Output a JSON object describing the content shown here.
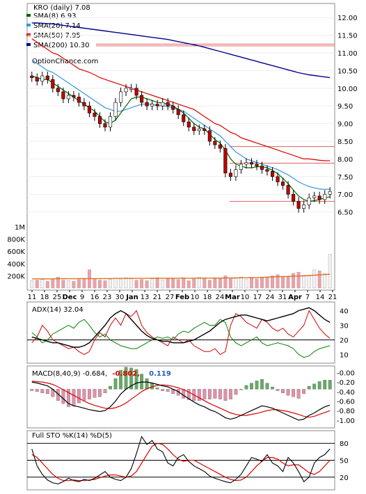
{
  "chart_data": [
    {
      "type": "candlestick",
      "panel": "price",
      "title": "KRO (daily) 7.08",
      "watermark": "OptionChance.com",
      "ylim": [
        6.0,
        12.3
      ],
      "yticks": [
        "12.00",
        "11.50",
        "11.00",
        "10.50",
        "10.00",
        "9.50",
        "9.00",
        "8.50",
        "8.00",
        "7.50",
        "7.00",
        "6.50"
      ],
      "legend": [
        {
          "label": "SMA(8) 6.93",
          "color": "#006400"
        },
        {
          "label": "SMA(20) 7.14",
          "color": "#3399dd"
        },
        {
          "label": "SMA(50) 7.95",
          "color": "#dd0000"
        },
        {
          "label": "SMA(200) 10.30",
          "color": "#00008b"
        }
      ],
      "hlines": [
        11.25,
        11.2,
        8.35,
        7.88,
        6.8
      ],
      "close": [
        10.3,
        10.2,
        10.35,
        10.25,
        10.0,
        9.9,
        9.7,
        9.8,
        9.75,
        9.6,
        9.5,
        9.3,
        9.2,
        9.0,
        8.9,
        9.2,
        9.6,
        9.9,
        10.0,
        10.0,
        9.8,
        9.6,
        9.5,
        9.55,
        9.5,
        9.6,
        9.5,
        9.4,
        9.25,
        9.05,
        8.9,
        8.8,
        8.85,
        8.8,
        8.5,
        8.4,
        8.3,
        7.6,
        7.5,
        7.7,
        7.85,
        7.9,
        7.85,
        7.8,
        7.7,
        7.65,
        7.5,
        7.35,
        7.25,
        7.0,
        6.8,
        6.6,
        6.7,
        6.9,
        6.95,
        6.85,
        7.0,
        7.08
      ],
      "sma8": [
        10.35,
        10.3,
        10.25,
        10.25,
        10.15,
        10.05,
        9.95,
        9.85,
        9.75,
        9.65,
        9.55,
        9.45,
        9.35,
        9.2,
        9.05,
        9.0,
        9.1,
        9.3,
        9.5,
        9.7,
        9.75,
        9.75,
        9.7,
        9.65,
        9.6,
        9.58,
        9.55,
        9.5,
        9.4,
        9.3,
        9.15,
        9.0,
        8.9,
        8.85,
        8.7,
        8.55,
        8.45,
        8.25,
        8.0,
        7.85,
        7.8,
        7.75,
        7.75,
        7.78,
        7.78,
        7.75,
        7.68,
        7.58,
        7.45,
        7.3,
        7.12,
        6.95,
        6.85,
        6.8,
        6.82,
        6.85,
        6.9,
        6.93
      ],
      "sma20": [
        10.8,
        10.7,
        10.6,
        10.5,
        10.45,
        10.35,
        10.25,
        10.15,
        10.05,
        9.95,
        9.85,
        9.75,
        9.65,
        9.55,
        9.45,
        9.4,
        9.35,
        9.35,
        9.4,
        9.45,
        9.5,
        9.55,
        9.55,
        9.55,
        9.5,
        9.5,
        9.48,
        9.45,
        9.4,
        9.35,
        9.25,
        9.15,
        9.05,
        8.95,
        8.85,
        8.75,
        8.65,
        8.5,
        8.35,
        8.2,
        8.1,
        8.0,
        7.95,
        7.9,
        7.85,
        7.8,
        7.75,
        7.7,
        7.62,
        7.55,
        7.45,
        7.35,
        7.28,
        7.22,
        7.18,
        7.15,
        7.14,
        7.14
      ],
      "sma50": [
        11.4,
        11.3,
        11.2,
        11.1,
        11.0,
        10.95,
        10.85,
        10.75,
        10.65,
        10.55,
        10.5,
        10.45,
        10.38,
        10.3,
        10.25,
        10.2,
        10.15,
        10.1,
        10.05,
        10.0,
        9.95,
        9.9,
        9.85,
        9.8,
        9.75,
        9.7,
        9.65,
        9.6,
        9.55,
        9.5,
        9.45,
        9.4,
        9.3,
        9.2,
        9.1,
        9.0,
        8.95,
        8.85,
        8.75,
        8.7,
        8.6,
        8.55,
        8.5,
        8.45,
        8.4,
        8.35,
        8.3,
        8.25,
        8.2,
        8.15,
        8.1,
        8.05,
        8.0,
        8.0,
        7.98,
        7.96,
        7.95,
        7.95
      ],
      "sma200": [
        11.85,
        11.85,
        11.84,
        11.83,
        11.82,
        11.8,
        11.78,
        11.76,
        11.74,
        11.72,
        11.7,
        11.68,
        11.66,
        11.64,
        11.62,
        11.6,
        11.58,
        11.56,
        11.54,
        11.52,
        11.5,
        11.48,
        11.46,
        11.44,
        11.42,
        11.4,
        11.38,
        11.35,
        11.32,
        11.29,
        11.26,
        11.23,
        11.2,
        11.16,
        11.12,
        11.08,
        11.04,
        11.0,
        10.96,
        10.92,
        10.88,
        10.84,
        10.8,
        10.76,
        10.72,
        10.68,
        10.64,
        10.6,
        10.56,
        10.52,
        10.48,
        10.44,
        10.41,
        10.38,
        10.36,
        10.34,
        10.32,
        10.3
      ]
    },
    {
      "type": "bar",
      "panel": "volume",
      "yticks": [
        "1M",
        "800K",
        "600K",
        "400K",
        "200K"
      ],
      "ylim": [
        0,
        1000000
      ],
      "xticks": [
        "11",
        "18",
        "25",
        "Dec",
        "9",
        "16",
        "23",
        "30",
        "Jan",
        "13",
        "21",
        "27",
        "Feb",
        "10",
        "18",
        "24",
        "Mar",
        "10",
        "17",
        "24",
        "31",
        "Apr",
        "7",
        "14",
        "21"
      ],
      "values": [
        120000,
        130000,
        140000,
        110000,
        150000,
        180000,
        130000,
        120000,
        110000,
        140000,
        160000,
        300000,
        150000,
        130000,
        120000,
        140000,
        160000,
        140000,
        170000,
        150000,
        130000,
        140000,
        120000,
        150000,
        170000,
        130000,
        160000,
        150000,
        140000,
        170000,
        120000,
        160000,
        180000,
        150000,
        130000,
        170000,
        160000,
        200000,
        150000,
        170000,
        180000,
        140000,
        160000,
        150000,
        170000,
        180000,
        200000,
        220000,
        190000,
        180000,
        240000,
        260000,
        210000,
        200000,
        300000,
        280000,
        240000,
        550000
      ],
      "ma": [
        150000,
        150000,
        150000,
        150000,
        150000,
        152000,
        152000,
        152000,
        152000,
        155000,
        155000,
        155000,
        155000,
        155000,
        155000,
        155000,
        158000,
        158000,
        158000,
        158000,
        158000,
        158000,
        158000,
        160000,
        160000,
        160000,
        160000,
        160000,
        160000,
        160000,
        160000,
        160000,
        160000,
        162000,
        162000,
        162000,
        162000,
        165000,
        165000,
        165000,
        168000,
        168000,
        170000,
        172000,
        175000,
        178000,
        182000,
        185000,
        188000,
        190000,
        193000,
        196000,
        200000,
        205000,
        210000,
        215000,
        220000,
        225000
      ]
    },
    {
      "type": "line",
      "panel": "adx",
      "legend": "ADX(14) 32.04",
      "yticks": [
        "40",
        "30",
        "20",
        "10"
      ],
      "ylim": [
        5,
        45
      ],
      "hline": 20,
      "adx": [
        22,
        21,
        20,
        19,
        18,
        18,
        17,
        16,
        15,
        15,
        16,
        18,
        22,
        26,
        30,
        35,
        38,
        40,
        38,
        34,
        30,
        26,
        23,
        21,
        20,
        19,
        19,
        18,
        18,
        18,
        19,
        20,
        22,
        24,
        26,
        29,
        32,
        34,
        35,
        36,
        37,
        37,
        36,
        35,
        34,
        33,
        34,
        35,
        36,
        37,
        38,
        40,
        41,
        42,
        40,
        37,
        34,
        32
      ],
      "plus_di": [
        18,
        22,
        30,
        26,
        20,
        18,
        16,
        14,
        15,
        12,
        10,
        12,
        20,
        25,
        22,
        30,
        35,
        30,
        38,
        36,
        40,
        30,
        25,
        22,
        20,
        18,
        16,
        22,
        20,
        18,
        20,
        16,
        14,
        12,
        12,
        14,
        10,
        12,
        30,
        38,
        36,
        32,
        30,
        28,
        34,
        32,
        28,
        26,
        28,
        24,
        22,
        26,
        30,
        40,
        34,
        28,
        24,
        21
      ],
      "minus_di": [
        25,
        22,
        18,
        20,
        24,
        26,
        28,
        30,
        28,
        32,
        34,
        30,
        25,
        22,
        24,
        20,
        18,
        16,
        15,
        14,
        14,
        16,
        18,
        20,
        22,
        21,
        22,
        20,
        24,
        26,
        25,
        28,
        30,
        32,
        30,
        30,
        34,
        32,
        22,
        18,
        16,
        18,
        20,
        22,
        18,
        16,
        17,
        18,
        17,
        16,
        14,
        10,
        8,
        9,
        12,
        14,
        15,
        16
      ]
    },
    {
      "type": "line",
      "panel": "macd",
      "legend": [
        "MACD(8,40,9) -0.684,",
        "-0.802,",
        "0.119"
      ],
      "yticks": [
        "-0.00",
        "-0.20",
        "-0.40",
        "-0.60",
        "-0.80",
        "-1.00"
      ],
      "ylim": [
        -1.12,
        0.08
      ],
      "macd": [
        -0.2,
        -0.22,
        -0.25,
        -0.28,
        -0.35,
        -0.45,
        -0.55,
        -0.65,
        -0.7,
        -0.72,
        -0.75,
        -0.78,
        -0.8,
        -0.82,
        -0.8,
        -0.72,
        -0.6,
        -0.45,
        -0.35,
        -0.28,
        -0.22,
        -0.2,
        -0.2,
        -0.22,
        -0.25,
        -0.28,
        -0.3,
        -0.35,
        -0.4,
        -0.48,
        -0.55,
        -0.62,
        -0.68,
        -0.72,
        -0.78,
        -0.82,
        -0.88,
        -0.95,
        -0.98,
        -0.95,
        -0.9,
        -0.85,
        -0.8,
        -0.75,
        -0.7,
        -0.72,
        -0.75,
        -0.8,
        -0.85,
        -0.9,
        -0.95,
        -1.0,
        -0.98,
        -0.9,
        -0.85,
        -0.78,
        -0.72,
        -0.684
      ],
      "signal": [
        -0.18,
        -0.19,
        -0.2,
        -0.22,
        -0.25,
        -0.3,
        -0.36,
        -0.42,
        -0.48,
        -0.54,
        -0.6,
        -0.65,
        -0.69,
        -0.72,
        -0.75,
        -0.76,
        -0.74,
        -0.7,
        -0.64,
        -0.56,
        -0.48,
        -0.4,
        -0.34,
        -0.3,
        -0.27,
        -0.26,
        -0.27,
        -0.29,
        -0.32,
        -0.36,
        -0.41,
        -0.47,
        -0.53,
        -0.59,
        -0.65,
        -0.7,
        -0.75,
        -0.8,
        -0.85,
        -0.88,
        -0.9,
        -0.9,
        -0.88,
        -0.86,
        -0.83,
        -0.8,
        -0.78,
        -0.78,
        -0.8,
        -0.82,
        -0.85,
        -0.88,
        -0.92,
        -0.94,
        -0.92,
        -0.88,
        -0.84,
        -0.802
      ],
      "hist": [
        -0.02,
        -0.03,
        -0.05,
        -0.06,
        -0.1,
        -0.15,
        -0.19,
        -0.23,
        -0.22,
        -0.18,
        -0.15,
        -0.13,
        -0.11,
        -0.1,
        -0.05,
        0.04,
        0.14,
        0.25,
        0.29,
        0.28,
        0.26,
        0.2,
        0.14,
        0.08,
        0.02,
        -0.02,
        -0.03,
        -0.06,
        -0.08,
        -0.12,
        -0.14,
        -0.15,
        -0.15,
        -0.13,
        -0.13,
        -0.12,
        -0.13,
        -0.15,
        -0.13,
        -0.07,
        0.0,
        0.05,
        0.08,
        0.11,
        0.13,
        0.08,
        0.03,
        -0.02,
        -0.05,
        -0.08,
        -0.1,
        -0.12,
        -0.06,
        0.04,
        0.07,
        0.1,
        0.12,
        0.119
      ]
    },
    {
      "type": "line",
      "panel": "stochastic",
      "legend": "Full STO %K(14) %D(5)",
      "yticks": [
        "80",
        "50",
        "20"
      ],
      "ylim": [
        0,
        100
      ],
      "hlines": [
        80,
        50,
        20
      ],
      "k": [
        70,
        40,
        25,
        15,
        10,
        8,
        12,
        18,
        14,
        12,
        16,
        14,
        18,
        24,
        30,
        20,
        16,
        14,
        20,
        35,
        62,
        92,
        78,
        85,
        70,
        65,
        45,
        40,
        55,
        60,
        48,
        40,
        35,
        30,
        22,
        18,
        15,
        12,
        10,
        16,
        25,
        40,
        55,
        52,
        48,
        60,
        45,
        40,
        30,
        55,
        45,
        30,
        12,
        20,
        45,
        55,
        60,
        70
      ],
      "d": [
        60,
        55,
        45,
        35,
        25,
        18,
        14,
        14,
        15,
        14,
        14,
        15,
        16,
        19,
        22,
        24,
        24,
        22,
        20,
        22,
        30,
        45,
        60,
        75,
        80,
        78,
        70,
        60,
        52,
        48,
        50,
        50,
        45,
        40,
        35,
        30,
        25,
        20,
        16,
        14,
        15,
        20,
        30,
        40,
        48,
        55,
        55,
        52,
        45,
        40,
        42,
        42,
        35,
        28,
        25,
        30,
        40,
        50
      ]
    }
  ]
}
